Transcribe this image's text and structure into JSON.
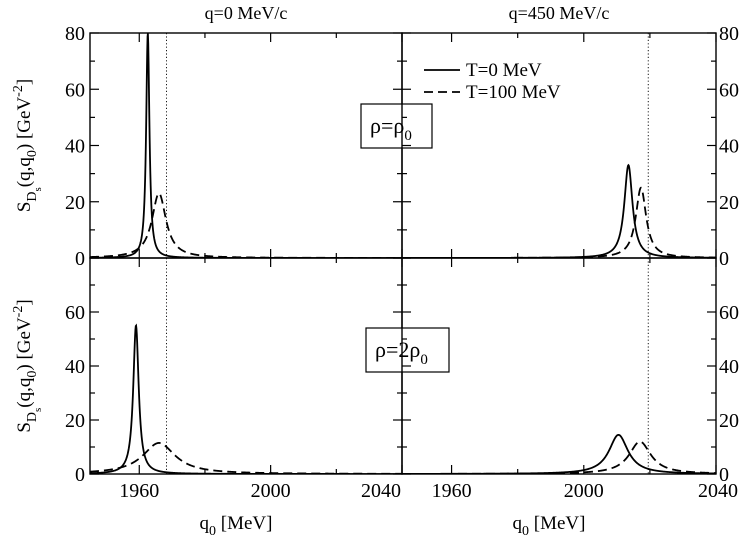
{
  "chart_data": [
    {
      "type": "line",
      "column_title": "q=0 MeV/c",
      "annotation": "ρ=ρ₀",
      "annotation_parts": {
        "base": "ρ=ρ",
        "sub": "0"
      },
      "ylabel_parts": {
        "a": "S",
        "b": "D",
        "c": "s",
        "d": "(q,q",
        "e": "0",
        "f": ") [GeV",
        "g": "-2",
        "h": "]"
      },
      "xlim": [
        1945,
        2040
      ],
      "ylim": [
        0,
        80
      ],
      "yticks": [
        0,
        20,
        40,
        60,
        80
      ],
      "xticks": [],
      "threshold_line_x": 1968.3,
      "series": [
        {
          "name": "T=0 MeV",
          "style": "solid",
          "peak_x": 1962.6,
          "peak_y": 80,
          "gamma": 0.6
        },
        {
          "name": "T=100 MeV",
          "style": "dashed",
          "peak_x": 1966.0,
          "peak_y": 23,
          "gamma": 2.6
        }
      ]
    },
    {
      "type": "line",
      "column_title": "q=450 MeV/c",
      "xlim": [
        1945,
        2040
      ],
      "ylim": [
        0,
        80
      ],
      "yticks": [
        0,
        20,
        40,
        60,
        80
      ],
      "xticks": [],
      "threshold_line_x": 2019.5,
      "series": [
        {
          "name": "T=0 MeV",
          "style": "solid",
          "peak_x": 2013.5,
          "peak_y": 33,
          "gamma": 1.5
        },
        {
          "name": "T=100 MeV",
          "style": "dashed",
          "peak_x": 2017.3,
          "peak_y": 25,
          "gamma": 1.9
        }
      ]
    },
    {
      "type": "line",
      "annotation": "ρ=2ρ₀",
      "annotation_parts": {
        "base": "ρ=2ρ",
        "sub": "0"
      },
      "ylabel_parts": {
        "a": "S",
        "b": "D",
        "c": "s",
        "d": "(q,q",
        "e": "0",
        "f": ") [GeV",
        "g": "-2",
        "h": "]"
      },
      "xlabel_parts": {
        "a": "q",
        "b": "0",
        "c": " [MeV]"
      },
      "xlim": [
        1945,
        2040
      ],
      "ylim": [
        0,
        80
      ],
      "yticks": [
        0,
        20,
        40,
        60
      ],
      "xticks": [
        1960,
        2000,
        2040
      ],
      "threshold_line_x": 1968.3,
      "series": [
        {
          "name": "T=0 MeV",
          "style": "solid",
          "peak_x": 1959.0,
          "peak_y": 55,
          "gamma": 1.0
        },
        {
          "name": "T=100 MeV",
          "style": "dashed",
          "peak_x": 1966.0,
          "peak_y": 11.5,
          "gamma": 6.0
        }
      ]
    },
    {
      "type": "line",
      "xlabel_parts": {
        "a": "q",
        "b": "0",
        "c": " [MeV]"
      },
      "xlim": [
        1945,
        2040
      ],
      "ylim": [
        0,
        80
      ],
      "yticks": [
        0,
        20,
        40,
        60
      ],
      "xticks": [
        1960,
        2000,
        2040
      ],
      "threshold_line_x": 2019.5,
      "series": [
        {
          "name": "T=0 MeV",
          "style": "solid",
          "peak_x": 2010.5,
          "peak_y": 14.5,
          "gamma": 3.5
        },
        {
          "name": "T=100 MeV",
          "style": "dashed",
          "peak_x": 2017.0,
          "peak_y": 12,
          "gamma": 4.0
        }
      ]
    }
  ],
  "legend": {
    "entries": [
      "T=0 MeV",
      "T=100 MeV"
    ],
    "placement": "top-right of upper-right panel"
  }
}
